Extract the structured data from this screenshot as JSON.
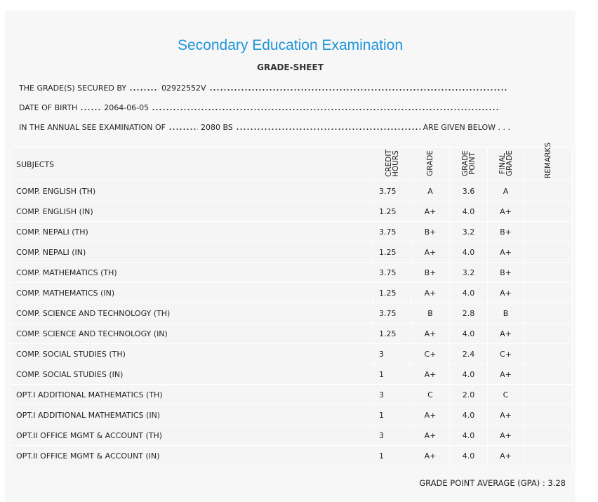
{
  "header": {
    "title": "Secondary Education Examination",
    "subtitle": "GRADE-SHEET"
  },
  "info": {
    "secured_by_label": "THE GRADE(S) SECURED BY",
    "secured_by": "02922552V",
    "dob_label": "DATE OF BIRTH",
    "dob": "2064-06-05",
    "exam_label": "IN THE ANNUAL SEE EXAMINATION OF",
    "exam": "2080 BS",
    "exam_suffix": "ARE GIVEN BELOW . . ."
  },
  "table": {
    "columns": [
      "SUBJECTS",
      "CREDIT HOURS",
      "GRADE",
      "GRADE POINT",
      "FINAL GRADE",
      "REMARKS"
    ],
    "rows": [
      [
        "COMP. ENGLISH (TH)",
        "3.75",
        "A",
        "3.6",
        "A"
      ],
      [
        "COMP. ENGLISH (IN)",
        "1.25",
        "A+",
        "4.0",
        "A+"
      ],
      [
        "COMP. NEPALI (TH)",
        "3.75",
        "B+",
        "3.2",
        "B+"
      ],
      [
        "COMP. NEPALI (IN)",
        "1.25",
        "A+",
        "4.0",
        "A+"
      ],
      [
        "COMP. MATHEMATICS (TH)",
        "3.75",
        "B+",
        "3.2",
        "B+"
      ],
      [
        "COMP. MATHEMATICS (IN)",
        "1.25",
        "A+",
        "4.0",
        "A+"
      ],
      [
        "COMP. SCIENCE AND TECHNOLOGY (TH)",
        "3.75",
        "B",
        "2.8",
        "B"
      ],
      [
        "COMP. SCIENCE AND TECHNOLOGY (IN)",
        "1.25",
        "A+",
        "4.0",
        "A+"
      ],
      [
        "COMP. SOCIAL STUDIES (TH)",
        "3",
        "C+",
        "2.4",
        "C+"
      ],
      [
        "COMP. SOCIAL STUDIES (IN)",
        "1",
        "A+",
        "4.0",
        "A+"
      ],
      [
        "OPT.I ADDITIONAL MATHEMATICS (TH)",
        "3",
        "C",
        "2.0",
        "C"
      ],
      [
        "OPT.I ADDITIONAL MATHEMATICS (IN)",
        "1",
        "A+",
        "4.0",
        "A+"
      ],
      [
        "OPT.II OFFICE MGMT & ACCOUNT (TH)",
        "3",
        "A+",
        "4.0",
        "A+"
      ],
      [
        "OPT.II OFFICE MGMT & ACCOUNT (IN)",
        "1",
        "A+",
        "4.0",
        "A+"
      ]
    ]
  },
  "footer": {
    "gpa": "GRADE POINT AVERAGE (GPA) : 3.28"
  }
}
